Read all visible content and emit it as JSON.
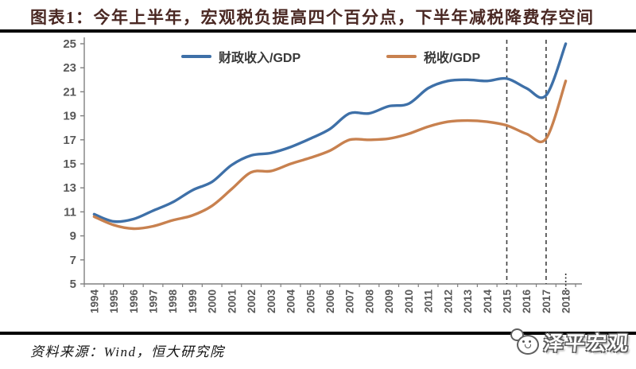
{
  "page": {
    "title": "图表1：今年上半年，宏观税负提高四个百分点，下半年减税降费存空间",
    "source": "资料来源：Wind，恒大研究院",
    "logo_text": "泽平宏观"
  },
  "colors": {
    "fiscal_line": "#3E70A8",
    "tax_line": "#C8814F",
    "axis": "#808080",
    "tick_label": "#595959",
    "dashed_line": "#3F3F3F",
    "title_text": "#4A2823"
  },
  "chart_data": {
    "type": "line",
    "x": [
      "1994",
      "1995",
      "1996",
      "1997",
      "1998",
      "1999",
      "2000",
      "2001",
      "2002",
      "2003",
      "2004",
      "2005",
      "2006",
      "2007",
      "2008",
      "2009",
      "2010",
      "2011",
      "2012",
      "2013",
      "2014",
      "2015",
      "2016",
      "2017",
      "2018"
    ],
    "series": [
      {
        "name": "财政收入/GDP",
        "color": "#3E70A8",
        "values": [
          10.8,
          10.2,
          10.4,
          11.1,
          11.8,
          12.8,
          13.5,
          14.9,
          15.7,
          15.9,
          16.4,
          17.1,
          17.9,
          19.2,
          19.2,
          19.8,
          20.0,
          21.3,
          21.9,
          22.0,
          21.9,
          22.1,
          21.3,
          20.7,
          25.0
        ]
      },
      {
        "name": "税收/GDP",
        "color": "#C8814F",
        "values": [
          10.6,
          9.9,
          9.6,
          9.8,
          10.3,
          10.7,
          11.5,
          12.9,
          14.3,
          14.4,
          15.0,
          15.5,
          16.1,
          17.0,
          17.0,
          17.1,
          17.5,
          18.1,
          18.5,
          18.6,
          18.5,
          18.2,
          17.5,
          17.1,
          21.9
        ]
      }
    ],
    "ylim": [
      5,
      25
    ],
    "ytick_step": 2,
    "grid": false,
    "legend_position": "top-inside",
    "annotations": {
      "dashed_vlines_x": [
        "2015",
        "2017"
      ],
      "dotted_vline_x": "2018"
    }
  }
}
